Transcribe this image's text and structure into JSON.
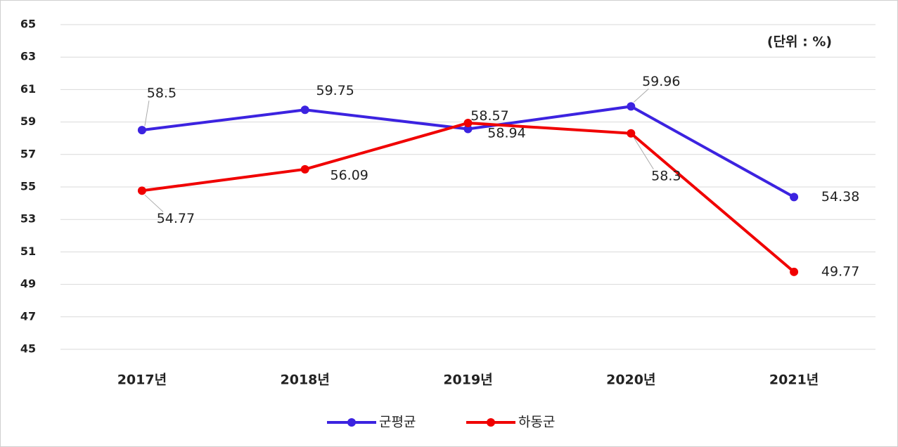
{
  "chart_data": {
    "type": "line",
    "annotation": "(단위 : %)",
    "categories": [
      "2017년",
      "2018년",
      "2019년",
      "2020년",
      "2021년"
    ],
    "series": [
      {
        "name": "군평균",
        "color": "#3c23e0",
        "values": [
          58.5,
          59.75,
          58.57,
          59.96,
          54.38
        ]
      },
      {
        "name": "하동군",
        "color": "#f00000",
        "values": [
          54.77,
          56.09,
          58.94,
          58.3,
          49.77
        ]
      }
    ],
    "ylim": [
      45,
      65
    ],
    "yticks": [
      45,
      47,
      49,
      51,
      53,
      55,
      57,
      59,
      61,
      63,
      65
    ],
    "grid": true,
    "legend": "bottom"
  }
}
